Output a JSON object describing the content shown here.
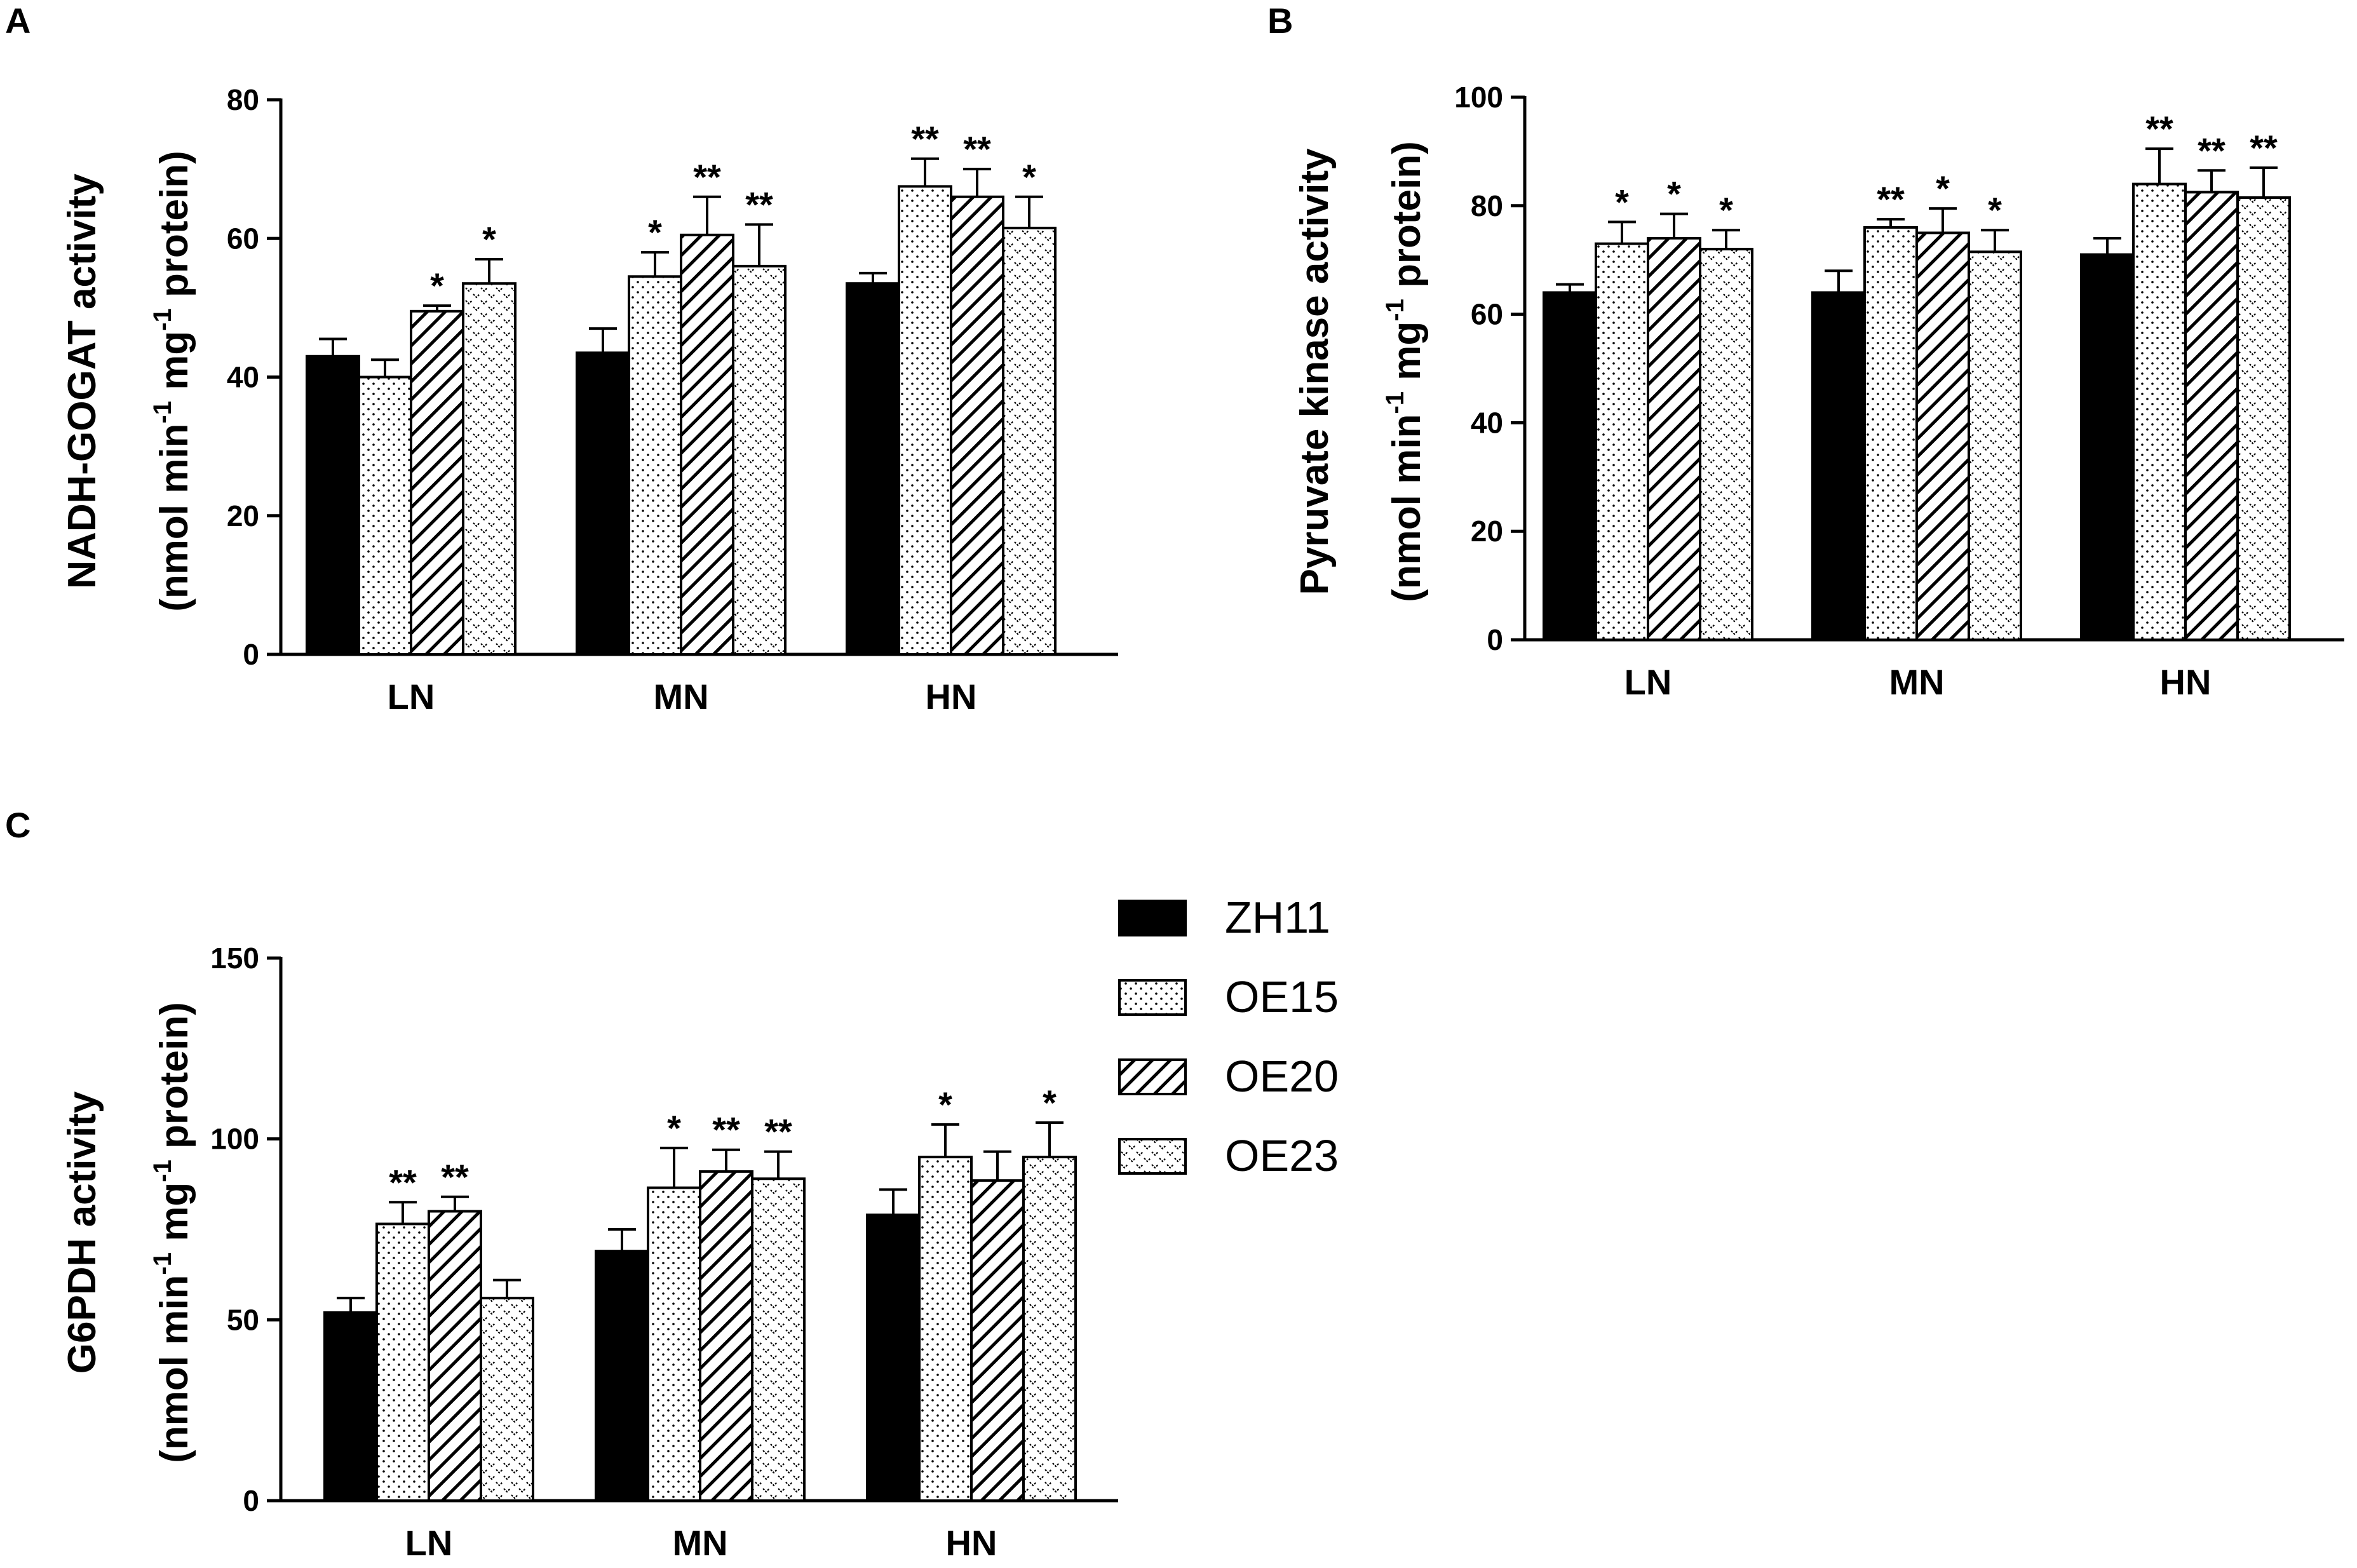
{
  "colors": {
    "ink": "#000000",
    "background": "#ffffff"
  },
  "legend": {
    "series": [
      "ZH11",
      "OE15",
      "OE20",
      "OE23"
    ],
    "patterns": [
      "solid",
      "dots",
      "diagonal-hatch",
      "wave-dots"
    ]
  },
  "chart_data": [
    {
      "type": "bar",
      "panel": "A",
      "ylabel_line1": "NADH-GOGAT activity",
      "ylabel_line2_prefix": "(nmol min",
      "ylabel_line2_middle": " mg",
      "ylabel_line2_suffix": " protein)",
      "ylabel_superscript": "-1",
      "ylim": [
        0,
        80
      ],
      "yticks": [
        0,
        20,
        40,
        60,
        80
      ],
      "categories": [
        "LN",
        "MN",
        "HN"
      ],
      "series": [
        {
          "name": "ZH11",
          "values": [
            43,
            43.5,
            53.5
          ],
          "errors": [
            2.5,
            3.5,
            1.5
          ],
          "sig": [
            "",
            "",
            ""
          ]
        },
        {
          "name": "OE15",
          "values": [
            40,
            54.5,
            67.5
          ],
          "errors": [
            2.5,
            3.5,
            4.0
          ],
          "sig": [
            "",
            "*",
            "**"
          ]
        },
        {
          "name": "OE20",
          "values": [
            49.5,
            60.5,
            66
          ],
          "errors": [
            0.8,
            5.5,
            4.0
          ],
          "sig": [
            "*",
            "**",
            "**"
          ]
        },
        {
          "name": "OE23",
          "values": [
            53.5,
            56,
            61.5
          ],
          "errors": [
            3.5,
            6.0,
            4.5
          ],
          "sig": [
            "*",
            "**",
            "*"
          ]
        }
      ]
    },
    {
      "type": "bar",
      "panel": "B",
      "ylabel_line1": "Pyruvate kinase activity",
      "ylabel_line2_prefix": "(nmol min",
      "ylabel_line2_middle": " mg",
      "ylabel_line2_suffix": " protein)",
      "ylabel_superscript": "-1",
      "ylim": [
        0,
        100
      ],
      "yticks": [
        0,
        20,
        40,
        60,
        80,
        100
      ],
      "categories": [
        "LN",
        "MN",
        "HN"
      ],
      "series": [
        {
          "name": "ZH11",
          "values": [
            64,
            64,
            71
          ],
          "errors": [
            1.5,
            4.0,
            3.0
          ],
          "sig": [
            "",
            "",
            ""
          ]
        },
        {
          "name": "OE15",
          "values": [
            73,
            76,
            84
          ],
          "errors": [
            4.0,
            1.5,
            6.5
          ],
          "sig": [
            "*",
            "**",
            "**"
          ]
        },
        {
          "name": "OE20",
          "values": [
            74,
            75,
            82.5
          ],
          "errors": [
            4.5,
            4.5,
            4.0
          ],
          "sig": [
            "*",
            "*",
            "**"
          ]
        },
        {
          "name": "OE23",
          "values": [
            72,
            71.5,
            81.5
          ],
          "errors": [
            3.5,
            4.0,
            5.5
          ],
          "sig": [
            "*",
            "*",
            "**"
          ]
        }
      ]
    },
    {
      "type": "bar",
      "panel": "C",
      "ylabel_line1": "G6PDH activity",
      "ylabel_line2_prefix": "(nmol min",
      "ylabel_line2_middle": " mg",
      "ylabel_line2_suffix": " protein)",
      "ylabel_superscript": "-1",
      "ylim": [
        0,
        150
      ],
      "yticks": [
        0,
        50,
        100,
        150
      ],
      "categories": [
        "LN",
        "MN",
        "HN"
      ],
      "series": [
        {
          "name": "ZH11",
          "values": [
            52,
            69,
            79
          ],
          "errors": [
            4,
            6,
            7
          ],
          "sig": [
            "",
            "",
            ""
          ]
        },
        {
          "name": "OE15",
          "values": [
            76.5,
            86.5,
            95
          ],
          "errors": [
            6,
            11,
            9
          ],
          "sig": [
            "**",
            "*",
            "*"
          ]
        },
        {
          "name": "OE20",
          "values": [
            80,
            91,
            88.5
          ],
          "errors": [
            4,
            6,
            8
          ],
          "sig": [
            "**",
            "**",
            ""
          ]
        },
        {
          "name": "OE23",
          "values": [
            56,
            89,
            95
          ],
          "errors": [
            5,
            7.5,
            9.5
          ],
          "sig": [
            "",
            "**",
            "*"
          ]
        }
      ]
    }
  ]
}
